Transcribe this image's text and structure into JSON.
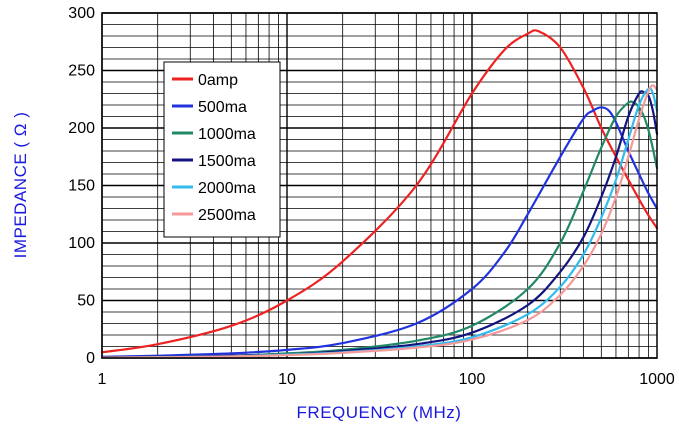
{
  "chart_data": {
    "type": "line",
    "xlabel": "FREQUENCY (MHz)",
    "ylabel": "IMPEDANCE ( Ω )",
    "xscale": "log",
    "xlim": [
      1,
      1000
    ],
    "ylim": [
      0,
      300
    ],
    "xticks": [
      "1",
      "10",
      "100",
      "1000"
    ],
    "yticks": [
      "0",
      "50",
      "100",
      "150",
      "200",
      "250",
      "300"
    ],
    "grid": true,
    "legend_position": "top-left",
    "series": [
      {
        "name": "0amp",
        "color": "#ee2222",
        "x": [
          1,
          2,
          5,
          10,
          20,
          50,
          100,
          150,
          200,
          230,
          300,
          400,
          500,
          600,
          700,
          800,
          900,
          1000
        ],
        "y": [
          5,
          12,
          28,
          50,
          84,
          150,
          230,
          268,
          282,
          284,
          270,
          235,
          200,
          175,
          155,
          138,
          124,
          113
        ]
      },
      {
        "name": "500ma",
        "color": "#2233dd",
        "x": [
          1,
          2,
          5,
          10,
          20,
          50,
          100,
          150,
          200,
          300,
          400,
          450,
          500,
          550,
          600,
          700,
          800,
          900,
          1000
        ],
        "y": [
          1,
          2,
          4,
          7,
          13,
          30,
          60,
          92,
          125,
          175,
          208,
          215,
          218,
          215,
          205,
          180,
          160,
          143,
          130
        ]
      },
      {
        "name": "1000ma",
        "color": "#228866",
        "x": [
          1,
          2,
          5,
          10,
          20,
          50,
          100,
          200,
          300,
          400,
          500,
          600,
          700,
          750,
          800,
          850,
          900,
          950,
          1000
        ],
        "y": [
          0.5,
          1,
          2,
          4,
          7,
          15,
          28,
          60,
          100,
          145,
          183,
          210,
          222,
          222,
          218,
          210,
          198,
          182,
          165
        ]
      },
      {
        "name": "1500ma",
        "color": "#141480",
        "x": [
          1,
          2,
          5,
          10,
          20,
          50,
          100,
          200,
          300,
          400,
          500,
          600,
          700,
          800,
          850,
          900,
          950,
          1000
        ],
        "y": [
          0.5,
          1,
          2,
          3,
          6,
          12,
          22,
          46,
          75,
          105,
          140,
          175,
          210,
          230,
          231,
          228,
          215,
          195
        ]
      },
      {
        "name": "2000ma",
        "color": "#33bbee",
        "x": [
          1,
          2,
          5,
          10,
          20,
          50,
          100,
          200,
          300,
          400,
          500,
          600,
          700,
          800,
          900,
          950,
          1000
        ],
        "y": [
          0.3,
          0.8,
          1.5,
          3,
          5,
          10,
          18,
          38,
          62,
          90,
          122,
          155,
          190,
          220,
          234,
          230,
          215
        ]
      },
      {
        "name": "2500ma",
        "color": "#f49a9a",
        "x": [
          1,
          2,
          5,
          10,
          20,
          50,
          100,
          200,
          300,
          400,
          500,
          600,
          700,
          800,
          900,
          950,
          1000
        ],
        "y": [
          0.3,
          0.6,
          1.3,
          2.5,
          4.5,
          9,
          16,
          33,
          55,
          80,
          108,
          140,
          175,
          208,
          232,
          237,
          233
        ]
      }
    ]
  }
}
